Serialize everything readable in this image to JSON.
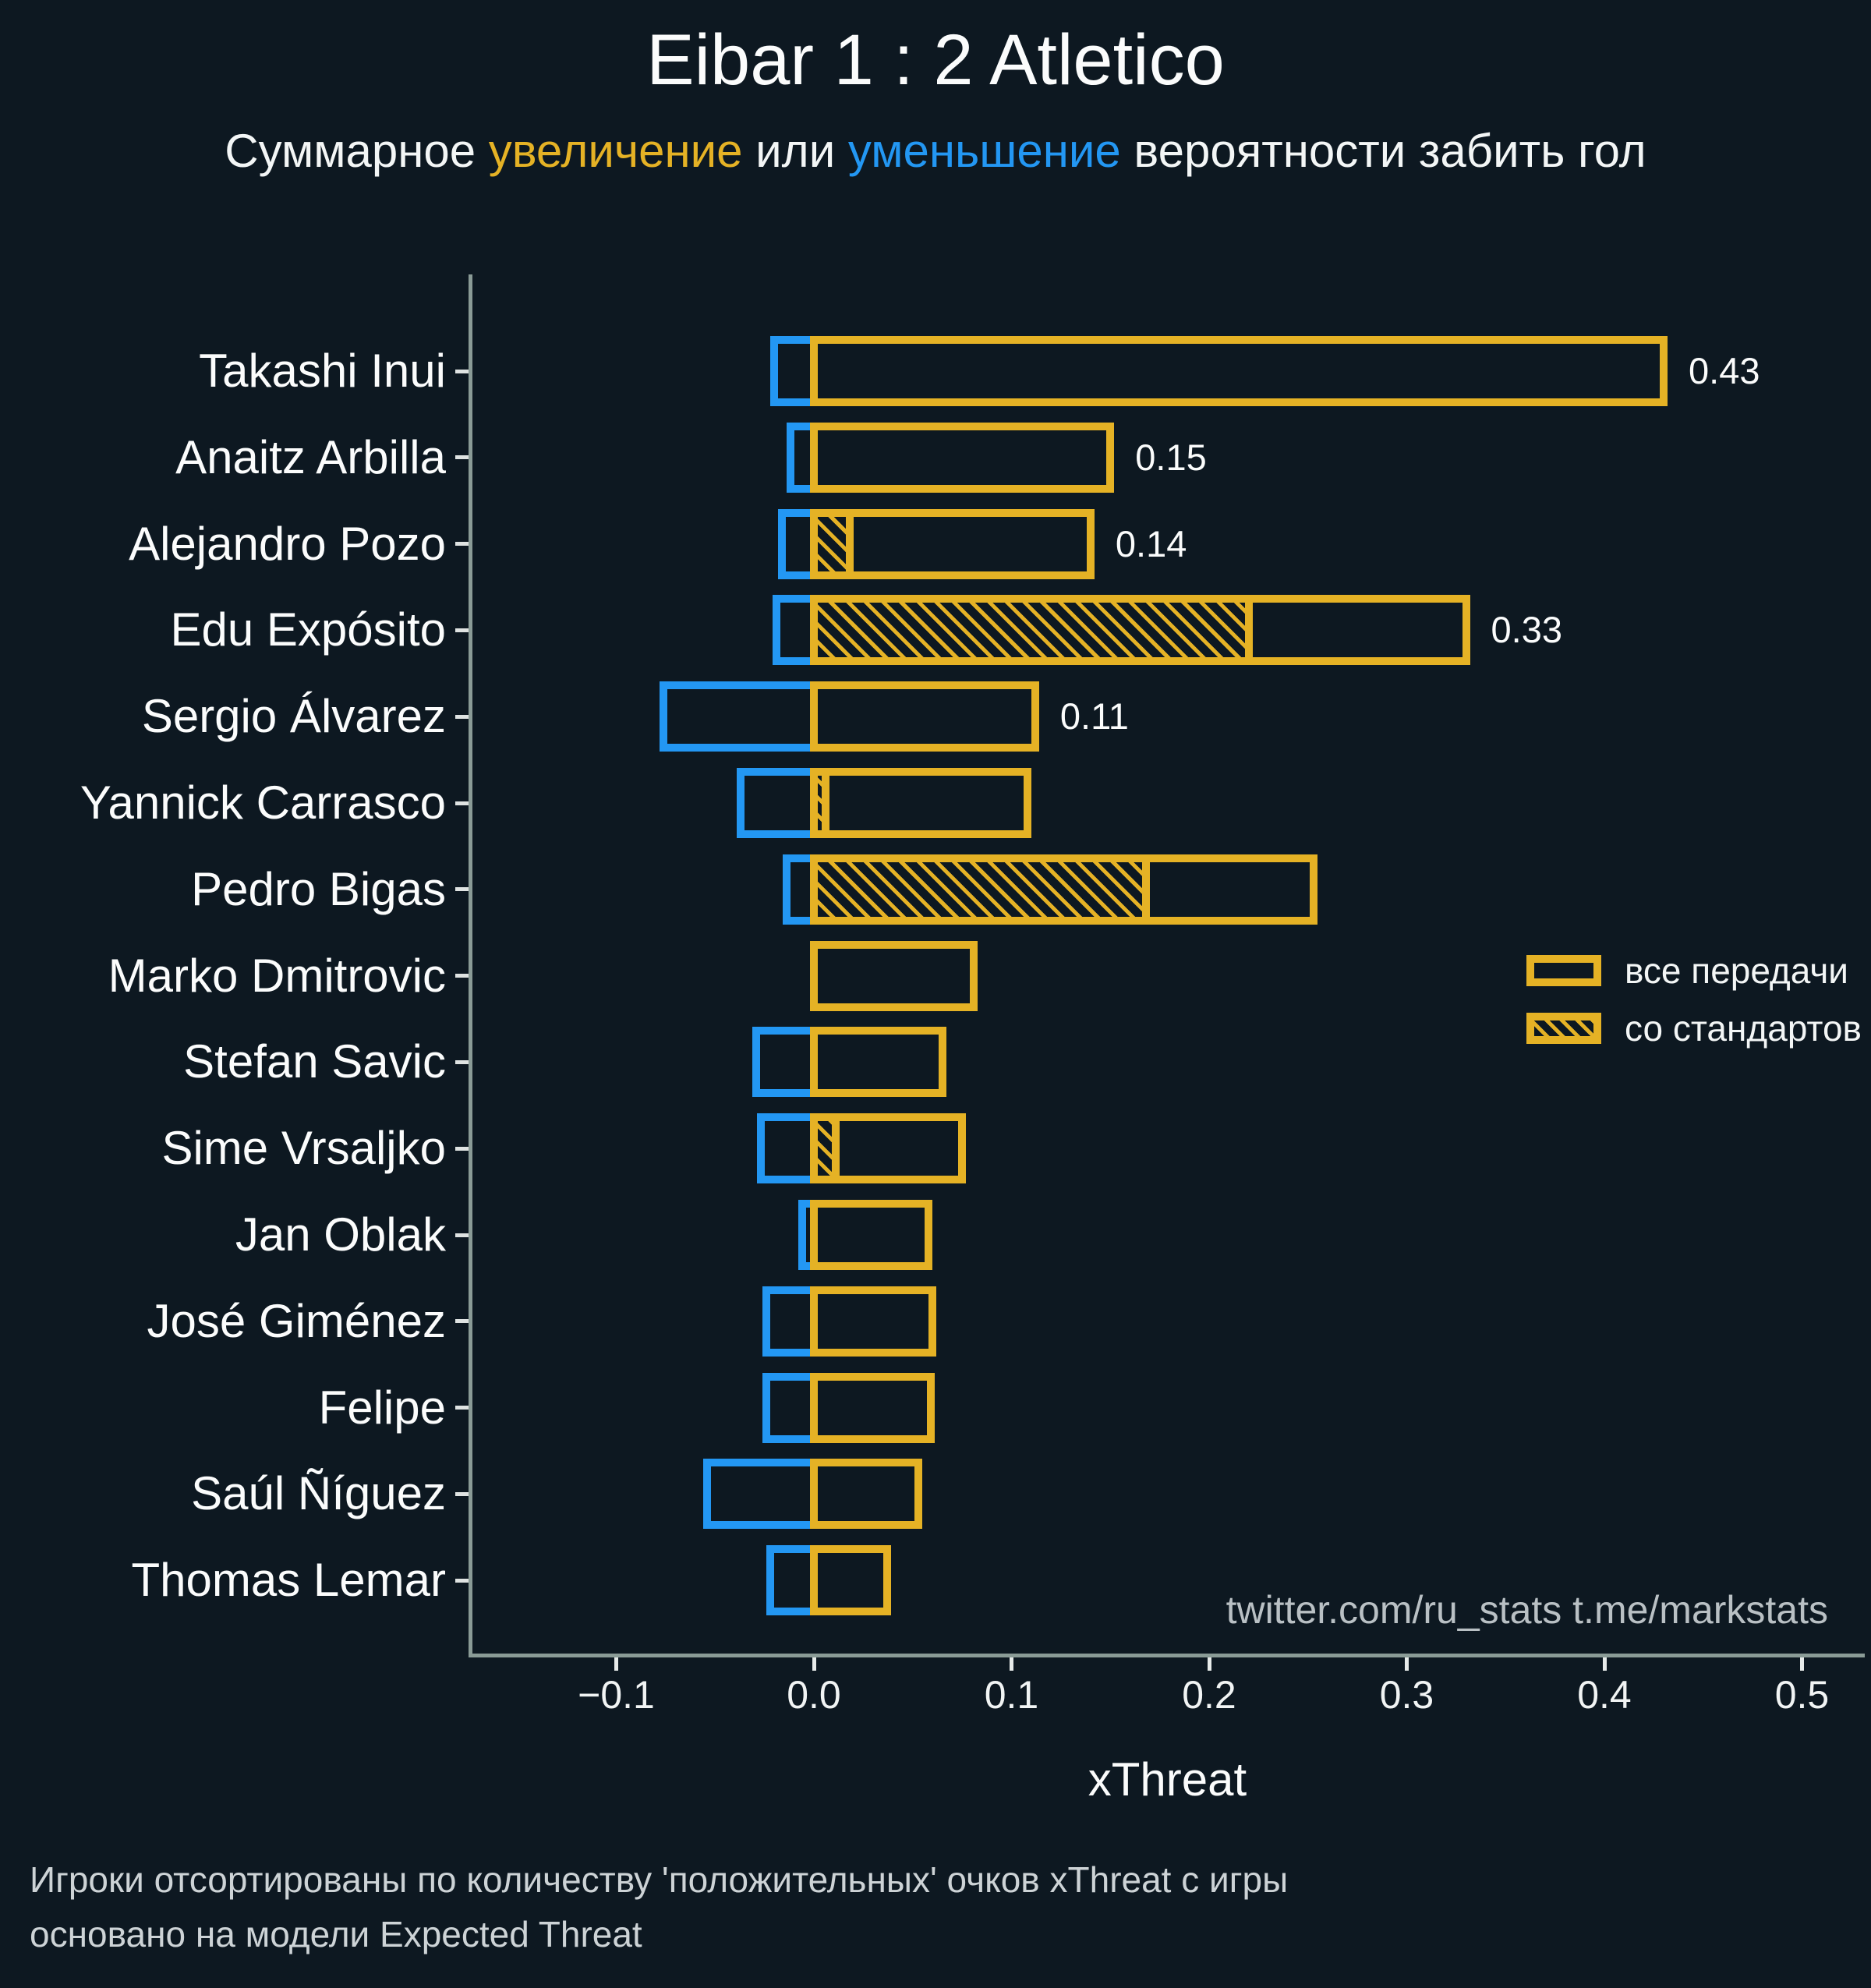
{
  "title": "Eibar 1 : 2 Atletico",
  "subtitle": {
    "parts": [
      {
        "text": "Суммарное ",
        "color": "white"
      },
      {
        "text": "увеличение",
        "color": "gold"
      },
      {
        "text": " или ",
        "color": "white"
      },
      {
        "text": "уменьшение",
        "color": "blue"
      },
      {
        "text": " вероятности забить гол",
        "color": "white"
      }
    ]
  },
  "colors": {
    "background": "#0d1821",
    "gold": "#e5b225",
    "blue": "#2397f3",
    "spine": "#8a9b96",
    "text": "#fbfcfc",
    "muted": "#cdd3d6",
    "watermark": "#b9c0c4"
  },
  "legend": {
    "items": [
      {
        "label": "все передачи",
        "hatched": false
      },
      {
        "label": "со стандартов",
        "hatched": true
      }
    ]
  },
  "watermark": "twitter.com/ru_stats  t.me/markstats",
  "footnote_line1": "Игроки отсортированы по количеству 'положительных' очков xThreat с игры",
  "footnote_line2": "основано на модели Expected Threat",
  "chart_data": {
    "type": "bar",
    "orientation": "horizontal",
    "title": "Eibar 1 : 2 Atletico",
    "xlabel": "xThreat",
    "ylabel": "",
    "xlim": [
      -0.17,
      0.53
    ],
    "grid": false,
    "legend_position": "center-right",
    "x_ticks": [
      {
        "v": -0.1,
        "label": "−0.1"
      },
      {
        "v": 0.0,
        "label": "0.0"
      },
      {
        "v": 0.1,
        "label": "0.1"
      },
      {
        "v": 0.2,
        "label": "0.2"
      },
      {
        "v": 0.3,
        "label": "0.3"
      },
      {
        "v": 0.4,
        "label": "0.4"
      },
      {
        "v": 0.5,
        "label": "0.5"
      }
    ],
    "series_note": "increase = все передачи (gold outline), set_pieces = со стандартов (gold hatched), decrease = уменьшение (blue outline)",
    "players": [
      {
        "name": "Takashi Inui",
        "decrease": -0.02,
        "increase": 0.43,
        "set_pieces": 0.0,
        "label": "0.43"
      },
      {
        "name": "Anaitz Arbilla",
        "decrease": -0.012,
        "increase": 0.15,
        "set_pieces": 0.0,
        "label": "0.15"
      },
      {
        "name": "Alejandro Pozo",
        "decrease": -0.016,
        "increase": 0.14,
        "set_pieces": 0.018,
        "label": "0.14"
      },
      {
        "name": "Edu Expósito",
        "decrease": -0.019,
        "increase": 0.33,
        "set_pieces": 0.22,
        "label": "0.33"
      },
      {
        "name": "Sergio Álvarez",
        "decrease": -0.076,
        "increase": 0.112,
        "set_pieces": 0.0,
        "label": "0.11"
      },
      {
        "name": "Yannick Carrasco",
        "decrease": -0.037,
        "increase": 0.108,
        "set_pieces": 0.006,
        "label": null
      },
      {
        "name": "Pedro Bigas",
        "decrease": -0.014,
        "increase": 0.253,
        "set_pieces": 0.168,
        "label": null
      },
      {
        "name": "Marko Dmitrovic",
        "decrease": 0.0,
        "increase": 0.081,
        "set_pieces": 0.0,
        "label": null
      },
      {
        "name": "Stefan Savic",
        "decrease": -0.029,
        "increase": 0.065,
        "set_pieces": 0.0,
        "label": null
      },
      {
        "name": "Sime Vrsaljko",
        "decrease": -0.027,
        "increase": 0.075,
        "set_pieces": 0.011,
        "label": null
      },
      {
        "name": "Jan Oblak",
        "decrease": -0.006,
        "increase": 0.058,
        "set_pieces": 0.0,
        "label": null
      },
      {
        "name": "José Giménez",
        "decrease": -0.024,
        "increase": 0.06,
        "set_pieces": 0.0,
        "label": null
      },
      {
        "name": "Felipe",
        "decrease": -0.024,
        "increase": 0.059,
        "set_pieces": 0.0,
        "label": null
      },
      {
        "name": "Saúl Ñíguez",
        "decrease": -0.054,
        "increase": 0.053,
        "set_pieces": 0.0,
        "label": null
      },
      {
        "name": "Thomas Lemar",
        "decrease": -0.022,
        "increase": 0.037,
        "set_pieces": 0.0,
        "label": null
      }
    ]
  }
}
